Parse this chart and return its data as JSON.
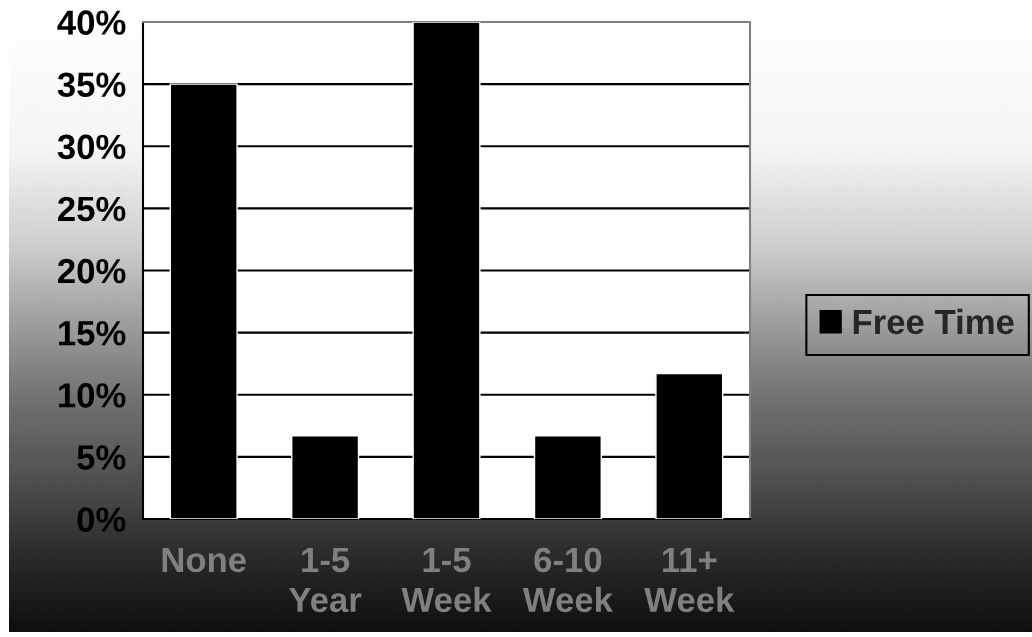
{
  "chart_data": {
    "type": "bar",
    "categories": [
      "None",
      "1-5\nYear",
      "1-5\nWeek",
      "6-10\nWeek",
      "11+\nWeek"
    ],
    "series": [
      {
        "name": "Free Time",
        "color": "#000000",
        "values": [
          35,
          6.7,
          40,
          6.7,
          11.7
        ]
      }
    ],
    "ylim": [
      0,
      40
    ],
    "yticks": [
      {
        "value": 0,
        "label": "0%"
      },
      {
        "value": 5,
        "label": "5%"
      },
      {
        "value": 10,
        "label": "10%"
      },
      {
        "value": 15,
        "label": "15%"
      },
      {
        "value": 20,
        "label": "20%"
      },
      {
        "value": 25,
        "label": "25%"
      },
      {
        "value": 30,
        "label": "30%"
      },
      {
        "value": 35,
        "label": "35%"
      },
      {
        "value": 40,
        "label": "40%"
      }
    ],
    "grid": "y",
    "legend": "right"
  }
}
